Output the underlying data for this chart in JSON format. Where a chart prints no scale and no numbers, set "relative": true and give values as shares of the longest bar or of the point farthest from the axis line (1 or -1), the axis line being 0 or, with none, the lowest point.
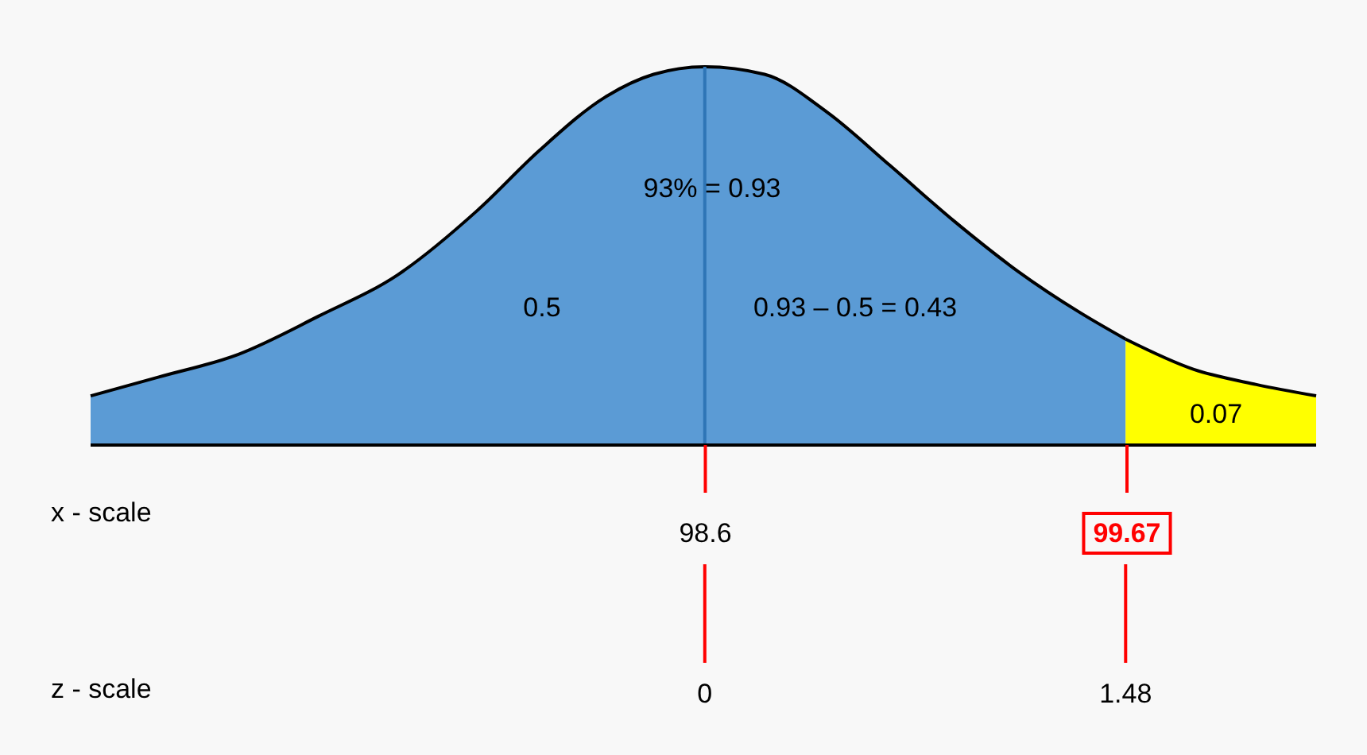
{
  "chart_data": {
    "type": "area",
    "relative": true,
    "xlabel": "z -  scale",
    "x2label": "x -  scale",
    "xlim": [
      -2.16,
      2.15
    ],
    "xticks": [
      0,
      1.48
    ],
    "x2lim": [
      97.04,
      100.15
    ],
    "x2ticks": [
      98.6,
      99.67
    ],
    "series": [
      {
        "color": "#5b9bd5",
        "x": [
          -2.16,
          -1.92,
          -1.64,
          -1.36,
          -1.08,
          -0.8,
          -0.58,
          -0.35,
          -0.18,
          0,
          0.21,
          0.43,
          0.65,
          0.88,
          1.1,
          1.32,
          1.48
        ],
        "values": [
          0.13,
          0.18,
          0.24,
          0.34,
          0.45,
          0.62,
          0.78,
          0.92,
          0.98,
          1,
          0.98,
          0.88,
          0.74,
          0.59,
          0.46,
          0.35,
          0.28
        ]
      },
      {
        "color": "#ffff00",
        "x": [
          1.48,
          1.72,
          1.94,
          2.15
        ],
        "values": [
          0.28,
          0.2,
          0.16,
          0.13
        ]
      }
    ],
    "ref_lines": [
      {
        "axis": "x",
        "value": 0,
        "color": "#2e75b6"
      }
    ],
    "annotations": [
      "93% = 0.93",
      "0.5",
      "0.93 – 0.5 = 0.43",
      "0.07"
    ],
    "grid": false
  }
}
